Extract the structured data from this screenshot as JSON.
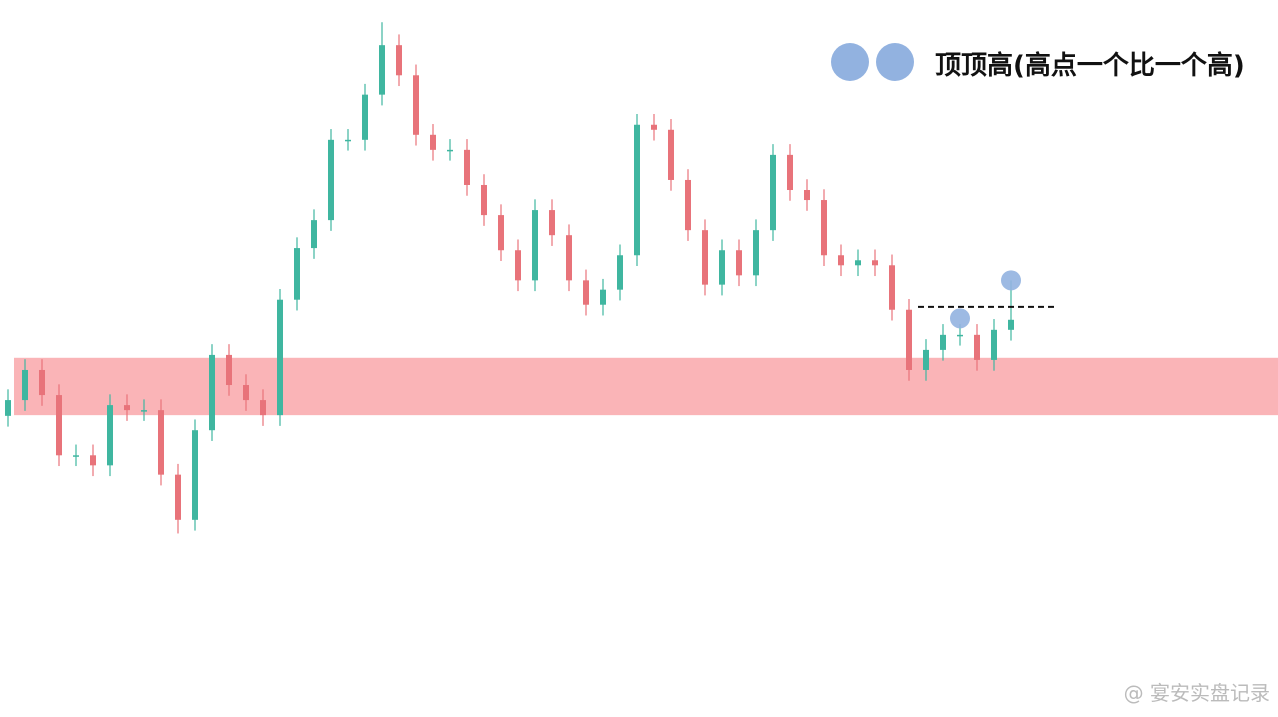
{
  "chart_data": {
    "type": "candlestick",
    "legend_text": "顶顶高(高点一个比一个高)",
    "watermark": "@ 宴安实盘记录",
    "up_color": "#3fb6a0",
    "down_color": "#e8737a",
    "zone_color": "#f9a7aa",
    "marker_color": "#92b2e0",
    "ylim": [
      0,
      100
    ],
    "categories": [
      null,
      null,
      null,
      null,
      null,
      null,
      null,
      null,
      null,
      null,
      null,
      null,
      null,
      null,
      null,
      null,
      null,
      null,
      null,
      null,
      null,
      null,
      null,
      null,
      null,
      null,
      null,
      null,
      null,
      null,
      null,
      null,
      null,
      null,
      null,
      null,
      null,
      null,
      null,
      null,
      null,
      null,
      null,
      null,
      null,
      null,
      null,
      null,
      null,
      null,
      null,
      null,
      null,
      null,
      null,
      null,
      null,
      null,
      null,
      null
    ],
    "open": [
      42,
      44.2,
      48.4,
      44.9,
      36.5,
      36.5,
      35.1,
      43.5,
      42.8,
      42.8,
      33.8,
      27.5,
      40.0,
      50.5,
      46.3,
      44.2,
      42.1,
      58.2,
      65.4,
      69.3,
      80.5,
      80.5,
      86.8,
      93.7,
      89.5,
      81.2,
      79.1,
      79.1,
      74.2,
      70.0,
      65.1,
      60.9,
      70.7,
      67.2,
      60.9,
      57.5,
      59.6,
      64.4,
      82.6,
      81.9,
      74.9,
      67.9,
      60.3,
      65.1,
      61.6,
      67.9,
      78.4,
      73.5,
      72.1,
      64.4,
      63.0,
      63.7,
      63.0,
      56.8,
      48.4,
      51.2,
      53.3,
      53.3,
      49.8,
      54.0
    ],
    "close": [
      44.2,
      48.4,
      44.9,
      36.5,
      36.5,
      35.1,
      43.5,
      42.8,
      42.8,
      33.8,
      27.5,
      40.0,
      50.5,
      46.3,
      44.2,
      42.1,
      58.2,
      65.4,
      69.3,
      80.5,
      80.5,
      86.8,
      93.7,
      89.5,
      81.2,
      79.1,
      79.1,
      74.2,
      70.0,
      65.1,
      60.9,
      70.7,
      67.2,
      60.9,
      57.5,
      59.6,
      64.4,
      82.6,
      81.9,
      74.9,
      67.9,
      60.3,
      65.1,
      61.6,
      67.9,
      78.4,
      73.5,
      72.1,
      64.4,
      63.0,
      63.7,
      63.0,
      56.8,
      48.4,
      51.2,
      53.3,
      53.3,
      49.8,
      54.0,
      55.4
    ],
    "high": [
      45.7,
      49.9,
      49.9,
      46.4,
      38.0,
      38.0,
      45.0,
      45.0,
      44.3,
      44.3,
      35.3,
      41.5,
      52.0,
      52.0,
      47.8,
      45.7,
      59.7,
      66.9,
      70.8,
      82.0,
      82.0,
      88.3,
      96.9,
      95.2,
      91.0,
      82.7,
      80.6,
      80.6,
      75.7,
      71.5,
      66.6,
      72.2,
      72.2,
      68.7,
      62.4,
      61.1,
      65.9,
      84.1,
      84.1,
      83.4,
      76.4,
      69.4,
      66.6,
      66.6,
      69.4,
      79.9,
      79.9,
      75.0,
      73.6,
      65.9,
      65.2,
      65.2,
      64.5,
      58.3,
      52.7,
      54.8,
      54.8,
      54.8,
      55.5,
      60.9
    ],
    "low": [
      40.5,
      42.7,
      43.4,
      35.0,
      35.0,
      33.6,
      33.6,
      41.3,
      41.3,
      32.3,
      25.6,
      26.0,
      38.5,
      44.8,
      42.7,
      40.6,
      40.6,
      56.7,
      63.9,
      67.8,
      79.0,
      79.0,
      85.3,
      88.0,
      79.7,
      77.6,
      77.6,
      72.7,
      68.5,
      63.6,
      59.4,
      59.4,
      65.7,
      59.4,
      56.0,
      56.0,
      58.1,
      62.9,
      80.4,
      73.4,
      66.4,
      58.8,
      58.8,
      60.1,
      60.1,
      66.4,
      72.0,
      70.6,
      62.9,
      61.5,
      61.5,
      61.5,
      55.3,
      46.9,
      46.9,
      49.7,
      51.8,
      48.3,
      48.3,
      52.5
    ],
    "zone": [
      42.1,
      50.1
    ],
    "resistance": 57.2,
    "markers": [
      {
        "index": 56,
        "value": 55.6
      },
      {
        "index": 59,
        "value": 60.9
      }
    ]
  }
}
